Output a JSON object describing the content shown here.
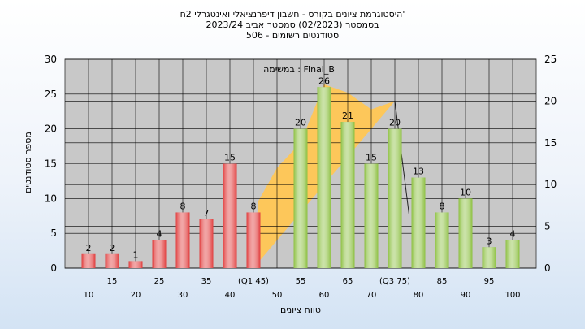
{
  "header": {
    "title": "היסטוגרמת ציונים בקורס - חשבון דיפרנציאלי ואינטגרלי 2ח'",
    "semester": "בסמסטר  (02/2023)  סמסטר אביב 2023/24",
    "students": "סטודנטים רשומים - 506"
  },
  "chart_data": {
    "type": "bar",
    "plot_label": "במשימה : Final_B",
    "xlabel": "טווח ציונים",
    "ylabel": "מספר סטודנטים",
    "ylim": [
      0,
      30
    ],
    "y2lim": [
      0,
      25
    ],
    "yticks": [
      0,
      5,
      10,
      15,
      20,
      25,
      30
    ],
    "y2ticks": [
      0,
      5,
      10,
      15,
      20,
      25
    ],
    "categories_top": [
      "15",
      "25",
      "35",
      "(Q1 45)",
      "55",
      "65",
      "(Q3 75)",
      "85",
      "95"
    ],
    "categories_bottom": [
      "10",
      "20",
      "30",
      "40",
      "50",
      "60",
      "70",
      "80",
      "90",
      "100"
    ],
    "bars": [
      {
        "x": 10,
        "value": 2,
        "color": "#e03a3a"
      },
      {
        "x": 15,
        "value": 2,
        "color": "#e03a3a"
      },
      {
        "x": 20,
        "value": 1,
        "color": "#e03a3a"
      },
      {
        "x": 25,
        "value": 4,
        "color": "#e03a3a"
      },
      {
        "x": 30,
        "value": 8,
        "color": "#e03a3a"
      },
      {
        "x": 35,
        "value": 7,
        "color": "#e03a3a"
      },
      {
        "x": 40,
        "value": 15,
        "color": "#e03a3a"
      },
      {
        "x": 45,
        "value": 8,
        "color": "#e03a3a"
      },
      {
        "x": 55,
        "value": 20,
        "color": "#8bbf3f"
      },
      {
        "x": 60,
        "value": 26,
        "color": "#8bbf3f"
      },
      {
        "x": 65,
        "value": 21,
        "color": "#8bbf3f"
      },
      {
        "x": 70,
        "value": 15,
        "color": "#8bbf3f"
      },
      {
        "x": 75,
        "value": 20,
        "color": "#8bbf3f"
      },
      {
        "x": 80,
        "value": 13,
        "color": "#8bbf3f"
      },
      {
        "x": 85,
        "value": 8,
        "color": "#8bbf3f"
      },
      {
        "x": 90,
        "value": 10,
        "color": "#8bbf3f"
      },
      {
        "x": 95,
        "value": 3,
        "color": "#8bbf3f"
      },
      {
        "x": 100,
        "value": 4,
        "color": "#8bbf3f"
      }
    ],
    "bar_labels": [
      "2",
      "2",
      "1",
      "4",
      "8",
      "7",
      "15",
      "8",
      "20",
      "26",
      "21",
      "15",
      "20",
      "13",
      "8",
      "10",
      "3",
      "4"
    ],
    "area": {
      "color": "#fdc75a",
      "points": [
        [
          45,
          0
        ],
        [
          46,
          8
        ],
        [
          50,
          12
        ],
        [
          55,
          15
        ],
        [
          60,
          22
        ],
        [
          65,
          21
        ],
        [
          70,
          19
        ],
        [
          75,
          20
        ]
      ]
    },
    "colors": {
      "below_q1": "#e03a3a",
      "above_q1": "#8bbf3f",
      "area": "#fdc75a",
      "plot_bg": "#c8c8c8",
      "grid": "#000000"
    }
  }
}
